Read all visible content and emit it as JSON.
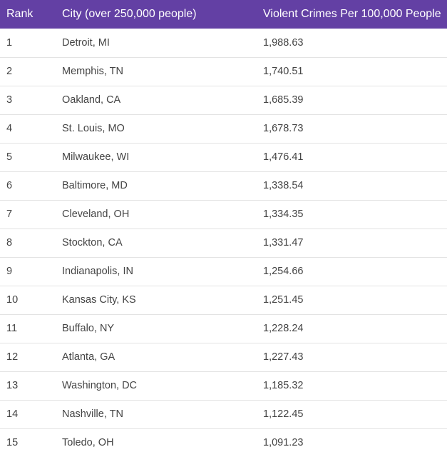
{
  "table": {
    "headers": [
      "Rank",
      "City (over 250,000 people)",
      "Violent Crimes Per 100,000 People"
    ],
    "header_color": "#6340a4",
    "rows": [
      [
        "1",
        "Detroit, MI",
        "1,988.63"
      ],
      [
        "2",
        "Memphis, TN",
        "1,740.51"
      ],
      [
        "3",
        "Oakland, CA",
        "1,685.39"
      ],
      [
        "4",
        "St. Louis, MO",
        "1,678.73"
      ],
      [
        "5",
        "Milwaukee, WI",
        "1,476.41"
      ],
      [
        "6",
        "Baltimore, MD",
        "1,338.54"
      ],
      [
        "7",
        "Cleveland, OH",
        "1,334.35"
      ],
      [
        "8",
        "Stockton, CA",
        "1,331.47"
      ],
      [
        "9",
        "Indianapolis, IN",
        "1,254.66"
      ],
      [
        "10",
        "Kansas City, KS",
        "1,251.45"
      ],
      [
        "11",
        "Buffalo, NY",
        "1,228.24"
      ],
      [
        "12",
        "Atlanta, GA",
        "1,227.43"
      ],
      [
        "13",
        "Washington, DC",
        "1,185.32"
      ],
      [
        "14",
        "Nashville, TN",
        "1,122.45"
      ],
      [
        "15",
        "Toledo, OH",
        "1,091.23"
      ]
    ]
  }
}
